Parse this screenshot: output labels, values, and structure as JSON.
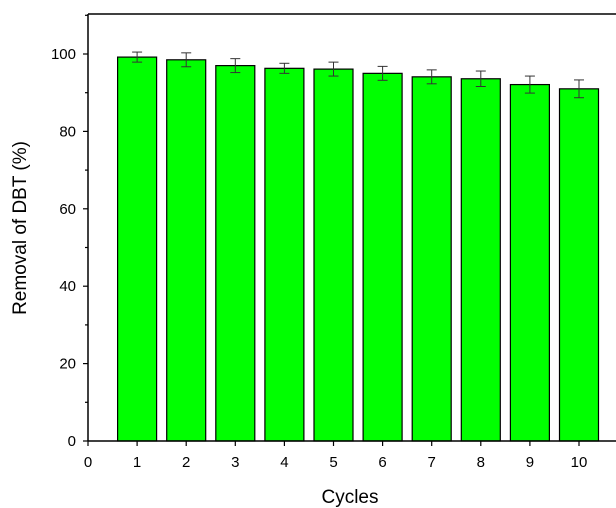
{
  "chart_data": {
    "type": "bar",
    "title": "",
    "xlabel": "Cycles",
    "ylabel": "Removal of DBT (%)",
    "x_ticks": [
      "0",
      "1",
      "2",
      "3",
      "4",
      "5",
      "6",
      "7",
      "8",
      "9",
      "10"
    ],
    "y_ticks": [
      "0",
      "20",
      "40",
      "60",
      "80",
      "100"
    ],
    "xlim": [
      0,
      10.5
    ],
    "ylim": [
      0,
      110
    ],
    "categories": [
      "1",
      "2",
      "3",
      "4",
      "5",
      "6",
      "7",
      "8",
      "9",
      "10"
    ],
    "values": [
      99.2,
      98.5,
      97.0,
      96.3,
      96.1,
      95.0,
      94.1,
      93.6,
      92.1,
      91.0
    ],
    "errors": [
      1.3,
      1.8,
      1.8,
      1.3,
      1.8,
      1.8,
      1.8,
      2.0,
      2.2,
      2.3
    ],
    "bar_color": "#00ff00",
    "grid": false,
    "legend": "none"
  }
}
